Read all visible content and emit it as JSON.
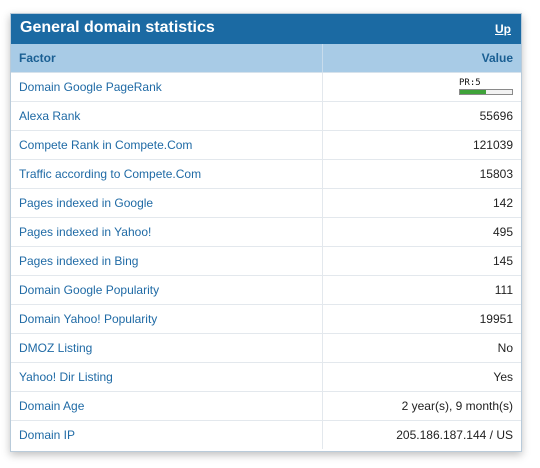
{
  "panel": {
    "title": "General domain statistics",
    "up_link": "Up"
  },
  "table": {
    "headers": {
      "factor": "Factor",
      "value": "Value"
    },
    "pagerank": {
      "label": "PR",
      "value": 5,
      "max": 10
    },
    "rows": [
      {
        "factor": "Domain Google PageRank",
        "value": "PR:5"
      },
      {
        "factor": "Alexa Rank",
        "value": "55696"
      },
      {
        "factor": "Compete Rank in Compete.Com",
        "value": "121039"
      },
      {
        "factor": "Traffic according to Compete.Com",
        "value": "15803"
      },
      {
        "factor": "Pages indexed in Google",
        "value": "142"
      },
      {
        "factor": "Pages indexed in Yahoo!",
        "value": "495"
      },
      {
        "factor": "Pages indexed in Bing",
        "value": "145"
      },
      {
        "factor": "Domain Google Popularity",
        "value": "111"
      },
      {
        "factor": "Domain Yahoo! Popularity",
        "value": "19951"
      },
      {
        "factor": "DMOZ Listing",
        "value": "No"
      },
      {
        "factor": "Yahoo! Dir Listing",
        "value": "Yes"
      },
      {
        "factor": "Domain Age",
        "value": "2 year(s), 9 month(s)"
      },
      {
        "factor": "Domain IP",
        "value": "205.186.187.144 / US"
      }
    ]
  }
}
